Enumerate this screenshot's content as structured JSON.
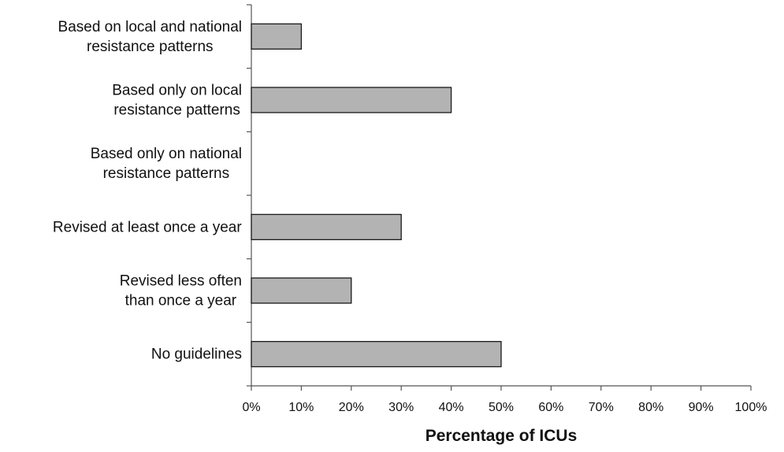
{
  "chart_data": {
    "type": "bar",
    "orientation": "horizontal",
    "categories": [
      [
        "Based on local and national",
        "resistance patterns"
      ],
      [
        "Based only on local",
        "resistance patterns"
      ],
      [
        "Based only on national",
        "resistance patterns"
      ],
      [
        "Revised at least once a year"
      ],
      [
        "Revised less often",
        "than once a year"
      ],
      [
        "No guidelines"
      ]
    ],
    "values": [
      10,
      40,
      0,
      30,
      20,
      50
    ],
    "xlim": [
      0,
      100
    ],
    "xticks": [
      0,
      10,
      20,
      30,
      40,
      50,
      60,
      70,
      80,
      90,
      100
    ],
    "xtick_labels": [
      "0%",
      "10%",
      "20%",
      "30%",
      "40%",
      "50%",
      "60%",
      "70%",
      "80%",
      "90%",
      "100%"
    ],
    "xlabel": "Percentage of ICUs",
    "ylabel": "",
    "title": "",
    "grid": false,
    "legend": "none",
    "colors": {
      "bar_fill": "#b3b3b3",
      "bar_stroke": "#1a1a1a",
      "axis": "#555555"
    }
  }
}
